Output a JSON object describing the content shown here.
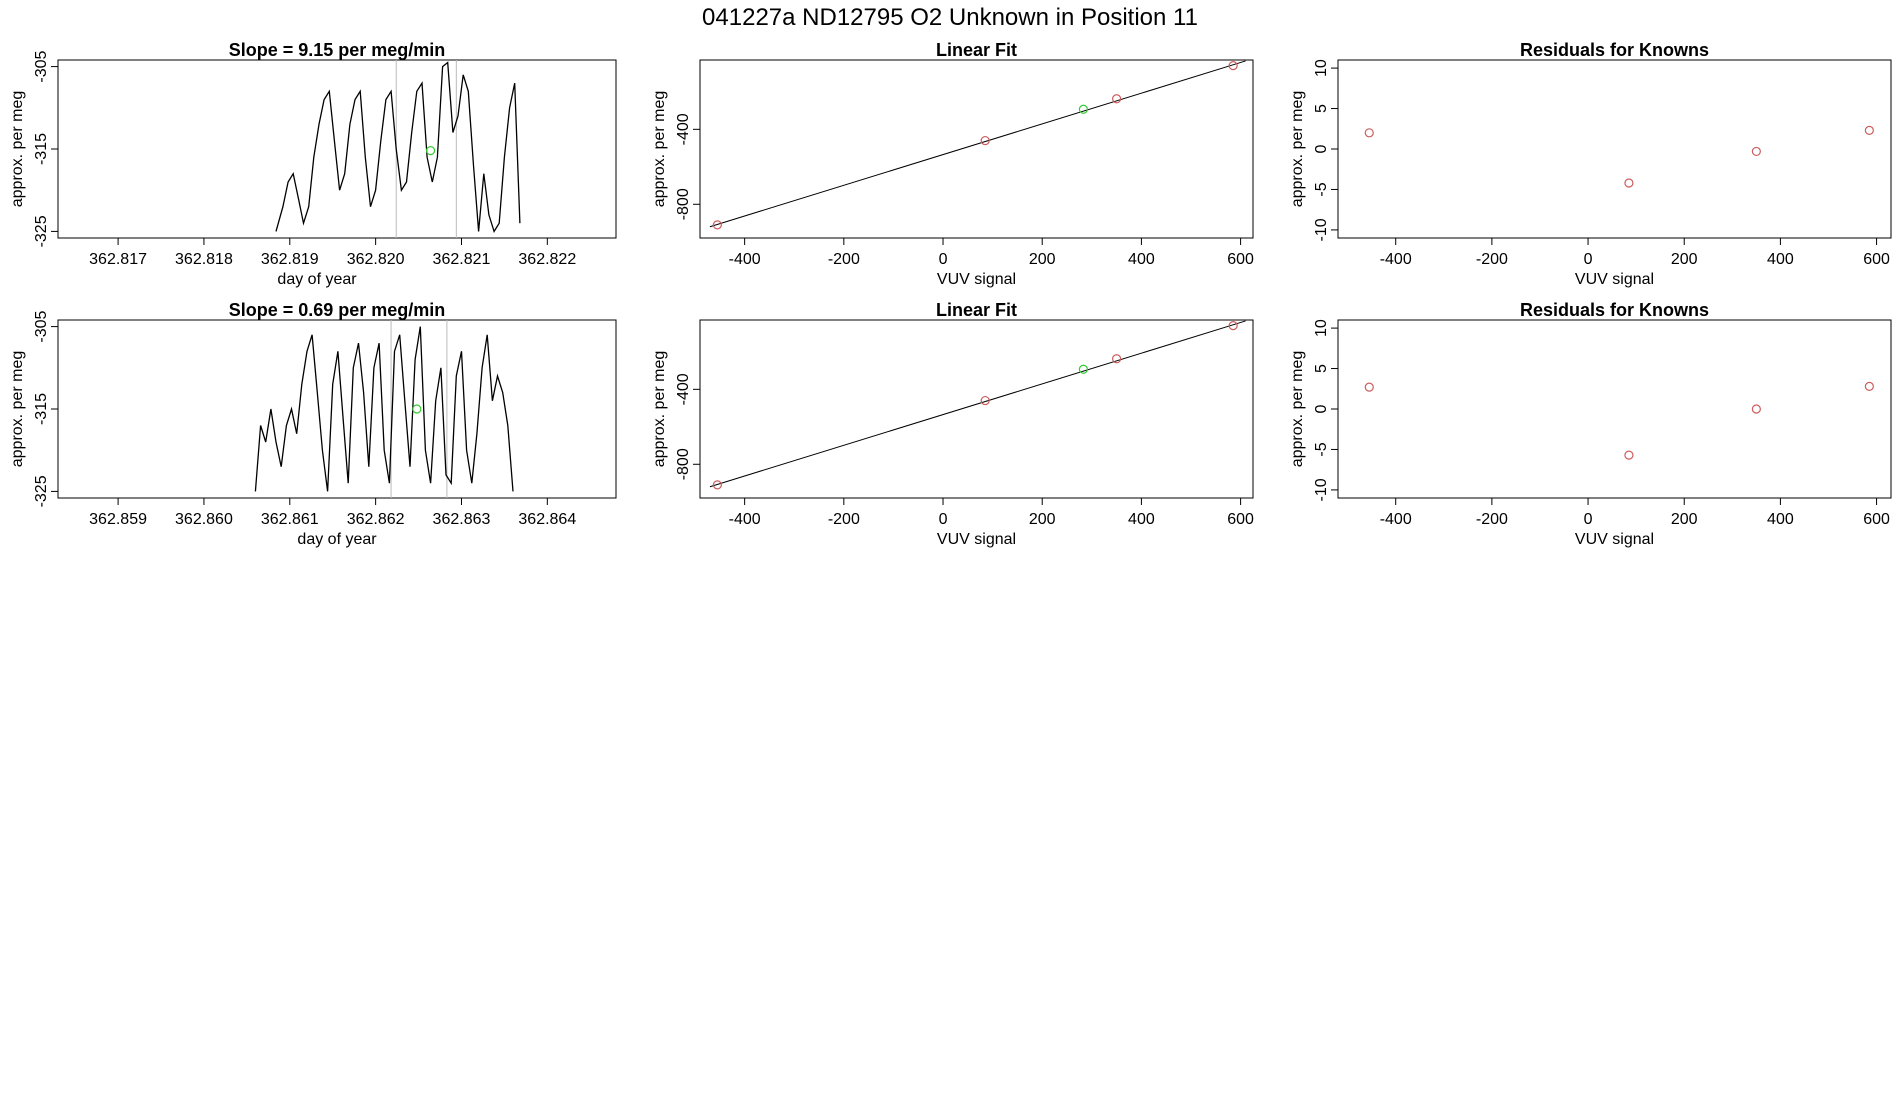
{
  "page_title": "041227a      ND12795   O2 Unknown in Position  11",
  "colors": {
    "known": "#cd5c5c",
    "unknown": "#33cc33",
    "line": "#000000",
    "refline": "#bbbbbb"
  },
  "chart_data": [
    {
      "id": "ts-row1",
      "type": "line",
      "title": "Slope =  9.15  per meg/min",
      "xlabel": "day of year",
      "ylabel": "approx. per meg",
      "xlim": [
        362.8163,
        362.8228
      ],
      "ylim": [
        -325.8,
        -304.2
      ],
      "xticks": [
        362.817,
        362.818,
        362.819,
        362.82,
        362.821,
        362.822
      ],
      "xtick_labels": [
        "362.817",
        "362.818",
        "362.819",
        "362.820",
        "362.821",
        "362.822"
      ],
      "yticks": [
        -305,
        -315,
        -325
      ],
      "ytick_labels": [
        "-305",
        "-315",
        "-325"
      ],
      "vlines": [
        362.82024,
        362.82094
      ],
      "unknown_point": {
        "x": 362.82064,
        "y": -315.2
      },
      "series": [
        {
          "x": [
            362.81884,
            362.81892,
            362.81898,
            362.81904,
            362.8191,
            362.81916,
            362.81922,
            362.81928,
            362.81934,
            362.8194,
            362.81946,
            362.81952,
            362.81958,
            362.81964,
            362.8197,
            362.81976,
            362.81982,
            362.81988,
            362.81994,
            362.82,
            362.82006,
            362.82012,
            362.82018,
            362.82024,
            362.8203,
            362.82036,
            362.82042,
            362.82048,
            362.82054,
            362.8206,
            362.82066,
            362.82072,
            362.82078,
            362.82084,
            362.8209,
            362.82096,
            362.82102,
            362.82108,
            362.82114,
            362.8212,
            362.82126,
            362.82132,
            362.82138,
            362.82144,
            362.8215,
            362.82156,
            362.82162,
            362.82168
          ],
          "y": [
            -325,
            -322,
            -319,
            -318,
            -321,
            -324,
            -322,
            -316,
            -312,
            -309,
            -308,
            -314,
            -320,
            -318,
            -312,
            -309,
            -308,
            -316,
            -322,
            -320,
            -314,
            -309,
            -308,
            -315,
            -320,
            -319,
            -313,
            -308,
            -307,
            -316,
            -319,
            -316,
            -305,
            -304.5,
            -313,
            -311,
            -306,
            -308,
            -317,
            -325,
            -318,
            -323,
            -325,
            -324,
            -316,
            -310,
            -307,
            -324
          ]
        }
      ]
    },
    {
      "id": "fit-row1",
      "type": "scatter",
      "title": "Linear Fit",
      "xlabel": "VUV signal",
      "ylabel": "approx. per meg",
      "xlim": [
        -490,
        625
      ],
      "ylim": [
        -980,
        -30
      ],
      "xticks": [
        -400,
        -200,
        0,
        200,
        400,
        600
      ],
      "xtick_labels": [
        "-400",
        "-200",
        "0",
        "200",
        "400",
        "600"
      ],
      "yticks": [
        -400,
        -800
      ],
      "ytick_labels": [
        "-400",
        "-800"
      ],
      "fit_line": {
        "x": [
          -470,
          610
        ],
        "y": [
          -920,
          -35
        ]
      },
      "known_points": {
        "x": [
          -455,
          85,
          350,
          585
        ],
        "y": [
          -910,
          -460,
          -237,
          -60
        ]
      },
      "unknown_point": {
        "x": 283,
        "y": -293
      }
    },
    {
      "id": "res-row1",
      "type": "scatter",
      "title": "Residuals for Knowns",
      "xlabel": "VUV signal",
      "ylabel": "approx. per meg",
      "xlim": [
        -520,
        630
      ],
      "ylim": [
        -11,
        11
      ],
      "xticks": [
        -400,
        -200,
        0,
        200,
        400,
        600
      ],
      "xtick_labels": [
        "-400",
        "-200",
        "0",
        "200",
        "400",
        "600"
      ],
      "yticks": [
        10,
        5,
        0,
        -5,
        -10
      ],
      "ytick_labels": [
        "10",
        "5",
        "0",
        "-5",
        "-10"
      ],
      "known_points": {
        "x": [
          -455,
          85,
          350,
          585
        ],
        "y": [
          2.0,
          -4.2,
          -0.3,
          2.3
        ]
      }
    },
    {
      "id": "ts-row2",
      "type": "line",
      "title": "Slope =  0.69  per meg/min",
      "xlabel": "day of year",
      "ylabel": "approx. per meg",
      "xlim": [
        362.8583,
        362.8648
      ],
      "ylim": [
        -325.8,
        -304.2
      ],
      "xticks": [
        362.859,
        362.86,
        362.861,
        362.862,
        362.863,
        362.864
      ],
      "xtick_labels": [
        "362.859",
        "362.860",
        "362.861",
        "362.862",
        "362.863",
        "362.864"
      ],
      "yticks": [
        -305,
        -315,
        -325
      ],
      "ytick_labels": [
        "-305",
        "-315",
        "-325"
      ],
      "vlines": [
        362.86218,
        362.86283
      ],
      "unknown_point": {
        "x": 362.86248,
        "y": -315.0
      },
      "series": [
        {
          "x": [
            362.8606,
            362.86066,
            362.86072,
            362.86078,
            362.86084,
            362.8609,
            362.86096,
            362.86102,
            362.86108,
            362.86114,
            362.8612,
            362.86126,
            362.86132,
            362.86138,
            362.86144,
            362.8615,
            362.86156,
            362.86162,
            362.86168,
            362.86174,
            362.8618,
            362.86186,
            362.86192,
            362.86198,
            362.86204,
            362.8621,
            362.86216,
            362.86222,
            362.86228,
            362.86234,
            362.8624,
            362.86246,
            362.86252,
            362.86258,
            362.86264,
            362.8627,
            362.86276,
            362.86282,
            362.86288,
            362.86294,
            362.863,
            362.86306,
            362.86312,
            362.86318,
            362.86324,
            362.8633,
            362.86336,
            362.86342,
            362.86348,
            362.86354,
            362.8636
          ],
          "y": [
            -325,
            -317,
            -319,
            -315,
            -319,
            -322,
            -317,
            -315,
            -318,
            -312,
            -308,
            -306,
            -313,
            -320,
            -325,
            -312,
            -308,
            -316,
            -324,
            -310,
            -307,
            -313,
            -322,
            -310,
            -307,
            -320,
            -324,
            -308,
            -306,
            -314,
            -322,
            -309,
            -305,
            -320,
            -324,
            -314,
            -310,
            -323,
            -324,
            -311,
            -308,
            -320,
            -324,
            -318,
            -310,
            -306,
            -314,
            -311,
            -313,
            -317,
            -325
          ]
        }
      ]
    },
    {
      "id": "fit-row2",
      "type": "scatter",
      "title": "Linear Fit",
      "xlabel": "VUV signal",
      "ylabel": "approx. per meg",
      "xlim": [
        -490,
        625
      ],
      "ylim": [
        -980,
        -30
      ],
      "xticks": [
        -400,
        -200,
        0,
        200,
        400,
        600
      ],
      "xtick_labels": [
        "-400",
        "-200",
        "0",
        "200",
        "400",
        "600"
      ],
      "yticks": [
        -400,
        -800
      ],
      "ytick_labels": [
        "-400",
        "-800"
      ],
      "fit_line": {
        "x": [
          -470,
          610
        ],
        "y": [
          -920,
          -35
        ]
      },
      "known_points": {
        "x": [
          -455,
          85,
          350,
          585
        ],
        "y": [
          -910,
          -460,
          -237,
          -60
        ]
      },
      "unknown_point": {
        "x": 283,
        "y": -293
      }
    },
    {
      "id": "res-row2",
      "type": "scatter",
      "title": "Residuals for Knowns",
      "xlabel": "VUV signal",
      "ylabel": "approx. per meg",
      "xlim": [
        -520,
        630
      ],
      "ylim": [
        -11,
        11
      ],
      "xticks": [
        -400,
        -200,
        0,
        200,
        400,
        600
      ],
      "xtick_labels": [
        "-400",
        "-200",
        "0",
        "200",
        "400",
        "600"
      ],
      "yticks": [
        10,
        5,
        0,
        -5,
        -10
      ],
      "ytick_labels": [
        "10",
        "5",
        "0",
        "-5",
        "-10"
      ],
      "known_points": {
        "x": [
          -455,
          85,
          350,
          585
        ],
        "y": [
          2.7,
          -5.7,
          0.0,
          2.8
        ]
      }
    }
  ]
}
